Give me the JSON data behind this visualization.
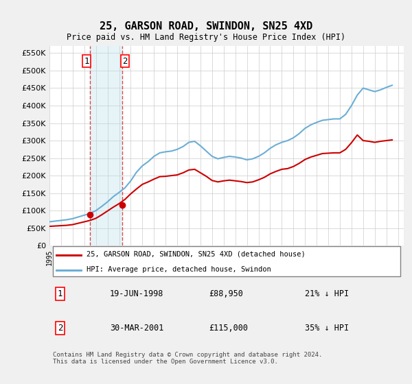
{
  "title": "25, GARSON ROAD, SWINDON, SN25 4XD",
  "subtitle": "Price paid vs. HM Land Registry's House Price Index (HPI)",
  "ylabel_ticks": [
    "£0",
    "£50K",
    "£100K",
    "£150K",
    "£200K",
    "£250K",
    "£300K",
    "£350K",
    "£400K",
    "£450K",
    "£500K",
    "£550K"
  ],
  "ytick_values": [
    0,
    50000,
    100000,
    150000,
    200000,
    250000,
    300000,
    350000,
    400000,
    450000,
    500000,
    550000
  ],
  "ylim": [
    0,
    570000
  ],
  "xlim_start": 1995.0,
  "xlim_end": 2025.5,
  "hpi_color": "#6baed6",
  "price_color": "#cc0000",
  "background_color": "#f0f0f0",
  "plot_background": "#ffffff",
  "grid_color": "#cccccc",
  "transaction1_date": 1998.46,
  "transaction1_price": 88950,
  "transaction1_label": "1",
  "transaction2_date": 2001.24,
  "transaction2_price": 115000,
  "transaction2_label": "2",
  "legend_line1": "25, GARSON ROAD, SWINDON, SN25 4XD (detached house)",
  "legend_line2": "HPI: Average price, detached house, Swindon",
  "table_row1": [
    "1",
    "19-JUN-1998",
    "£88,950",
    "21% ↓ HPI"
  ],
  "table_row2": [
    "2",
    "30-MAR-2001",
    "£115,000",
    "35% ↓ HPI"
  ],
  "footnote": "Contains HM Land Registry data © Crown copyright and database right 2024.\nThis data is licensed under the Open Government Licence v3.0.",
  "hpi_years": [
    1995,
    1995.5,
    1996,
    1996.5,
    1997,
    1997.5,
    1998,
    1998.5,
    1999,
    1999.5,
    2000,
    2000.5,
    2001,
    2001.5,
    2002,
    2002.5,
    2003,
    2003.5,
    2004,
    2004.5,
    2005,
    2005.5,
    2006,
    2006.5,
    2007,
    2007.5,
    2008,
    2008.5,
    2009,
    2009.5,
    2010,
    2010.5,
    2011,
    2011.5,
    2012,
    2012.5,
    2013,
    2013.5,
    2014,
    2014.5,
    2015,
    2015.5,
    2016,
    2016.5,
    2017,
    2017.5,
    2018,
    2018.5,
    2019,
    2019.5,
    2020,
    2020.5,
    2021,
    2021.5,
    2022,
    2022.5,
    2023,
    2023.5,
    2024,
    2024.5
  ],
  "hpi_values": [
    68000,
    70000,
    72000,
    74000,
    77000,
    82000,
    87000,
    92000,
    100000,
    112000,
    125000,
    140000,
    152000,
    165000,
    185000,
    210000,
    228000,
    240000,
    255000,
    265000,
    268000,
    270000,
    275000,
    283000,
    295000,
    298000,
    285000,
    270000,
    255000,
    248000,
    252000,
    255000,
    253000,
    250000,
    245000,
    248000,
    255000,
    265000,
    278000,
    288000,
    295000,
    300000,
    308000,
    320000,
    335000,
    345000,
    352000,
    358000,
    360000,
    362000,
    362000,
    375000,
    400000,
    430000,
    450000,
    445000,
    440000,
    445000,
    452000,
    458000
  ],
  "price_years": [
    1995,
    1995.5,
    1996,
    1996.5,
    1997,
    1997.5,
    1998,
    1998.5,
    1999,
    1999.5,
    2000,
    2000.5,
    2001,
    2001.5,
    2002,
    2002.5,
    2003,
    2003.5,
    2004,
    2004.5,
    2005,
    2005.5,
    2006,
    2006.5,
    2007,
    2007.5,
    2008,
    2008.5,
    2009,
    2009.5,
    2010,
    2010.5,
    2011,
    2011.5,
    2012,
    2012.5,
    2013,
    2013.5,
    2014,
    2014.5,
    2015,
    2015.5,
    2016,
    2016.5,
    2017,
    2017.5,
    2018,
    2018.5,
    2019,
    2019.5,
    2020,
    2020.5,
    2021,
    2021.5,
    2022,
    2022.5,
    2023,
    2023.5,
    2024,
    2024.5
  ],
  "price_values": [
    55000,
    56000,
    57000,
    58000,
    60000,
    64000,
    68000,
    72000,
    78000,
    88000,
    99000,
    110000,
    120000,
    132000,
    148000,
    162000,
    175000,
    182000,
    190000,
    197000,
    198000,
    200000,
    202000,
    208000,
    216000,
    218000,
    208000,
    198000,
    186000,
    182000,
    185000,
    187000,
    185000,
    183000,
    180000,
    182000,
    188000,
    195000,
    205000,
    212000,
    218000,
    220000,
    226000,
    235000,
    246000,
    253000,
    258000,
    263000,
    264000,
    265000,
    265000,
    275000,
    294000,
    316000,
    300000,
    298000,
    295000,
    298000,
    300000,
    302000
  ]
}
